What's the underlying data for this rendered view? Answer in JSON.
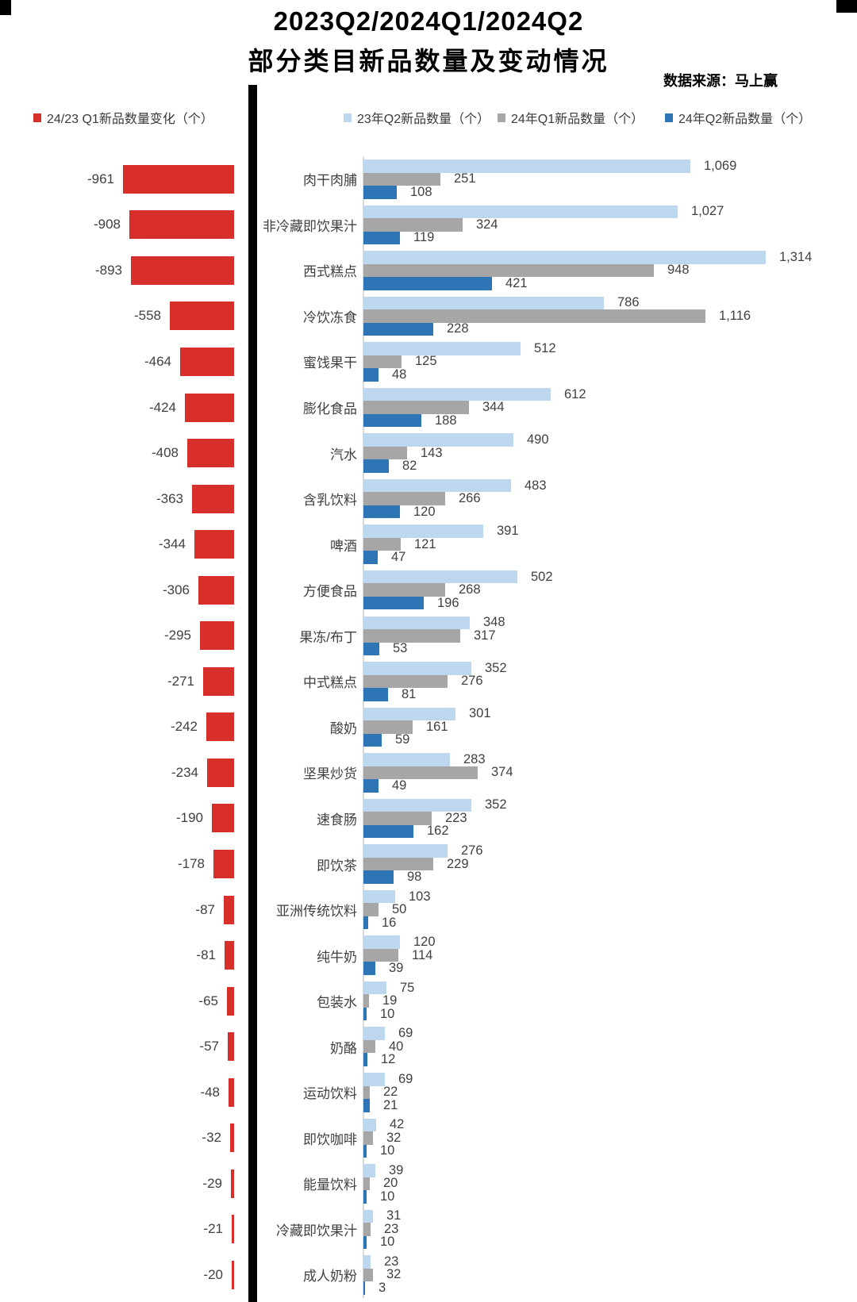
{
  "header": {
    "title_line1": "2023Q2/2024Q1/2024Q2",
    "title_line2": "部分类目新品数量及变动情况",
    "source": "数据来源：马上赢"
  },
  "legend": {
    "left": {
      "label": "24/23 Q1新品数量变化（个）",
      "color": "#d92f2b"
    },
    "right": [
      {
        "label": "23年Q2新品数量（个）",
        "color": "#bdd7ee"
      },
      {
        "label": "24年Q1新品数量（个）",
        "color": "#a6a6a6"
      },
      {
        "label": "24年Q2新品数量（个）",
        "color": "#2e75b6"
      }
    ]
  },
  "chart_data": {
    "type": "bar",
    "orientation": "horizontal",
    "title": "2023Q2/2024Q1/2024Q2 部分类目新品数量及变动情况",
    "source": "数据来源：马上赢",
    "categories": [
      "肉干肉脯",
      "非冷藏即饮果汁",
      "西式糕点",
      "冷饮冻食",
      "蜜饯果干",
      "膨化食品",
      "汽水",
      "含乳饮料",
      "啤酒",
      "方便食品",
      "果冻/布丁",
      "中式糕点",
      "酸奶",
      "坚果炒货",
      "速食肠",
      "即饮茶",
      "亚洲传统饮料",
      "纯牛奶",
      "包装水",
      "奶酪",
      "运动饮料",
      "即饮咖啡",
      "能量饮料",
      "冷藏即饮果汁",
      "成人奶粉"
    ],
    "series": [
      {
        "name": "24/23 Q1新品数量变化（个）",
        "color": "#d92f2b",
        "panel": "left",
        "values": [
          -961,
          -908,
          -893,
          -558,
          -464,
          -424,
          -408,
          -363,
          -344,
          -306,
          -295,
          -271,
          -242,
          -234,
          -190,
          -178,
          -87,
          -81,
          -65,
          -57,
          -48,
          -32,
          -29,
          -21,
          -20
        ]
      },
      {
        "name": "23年Q2新品数量（个）",
        "color": "#bdd7ee",
        "panel": "right",
        "values": [
          1069,
          1027,
          1314,
          786,
          512,
          612,
          490,
          483,
          391,
          502,
          348,
          352,
          301,
          283,
          352,
          276,
          103,
          120,
          75,
          69,
          69,
          42,
          39,
          31,
          23
        ]
      },
      {
        "name": "24年Q1新品数量（个）",
        "color": "#a6a6a6",
        "panel": "right",
        "values": [
          251,
          324,
          948,
          1116,
          125,
          344,
          143,
          266,
          121,
          268,
          317,
          276,
          161,
          374,
          223,
          229,
          50,
          114,
          19,
          40,
          22,
          32,
          20,
          23,
          32
        ]
      },
      {
        "name": "24年Q2新品数量（个）",
        "color": "#2e75b6",
        "panel": "right",
        "values": [
          108,
          119,
          421,
          228,
          48,
          188,
          82,
          120,
          47,
          196,
          53,
          81,
          59,
          49,
          162,
          98,
          16,
          39,
          10,
          12,
          21,
          10,
          10,
          10,
          3
        ]
      }
    ],
    "left_axis_max": 961,
    "right_axis_max": 1314,
    "grid": false,
    "legend_position": "top"
  }
}
